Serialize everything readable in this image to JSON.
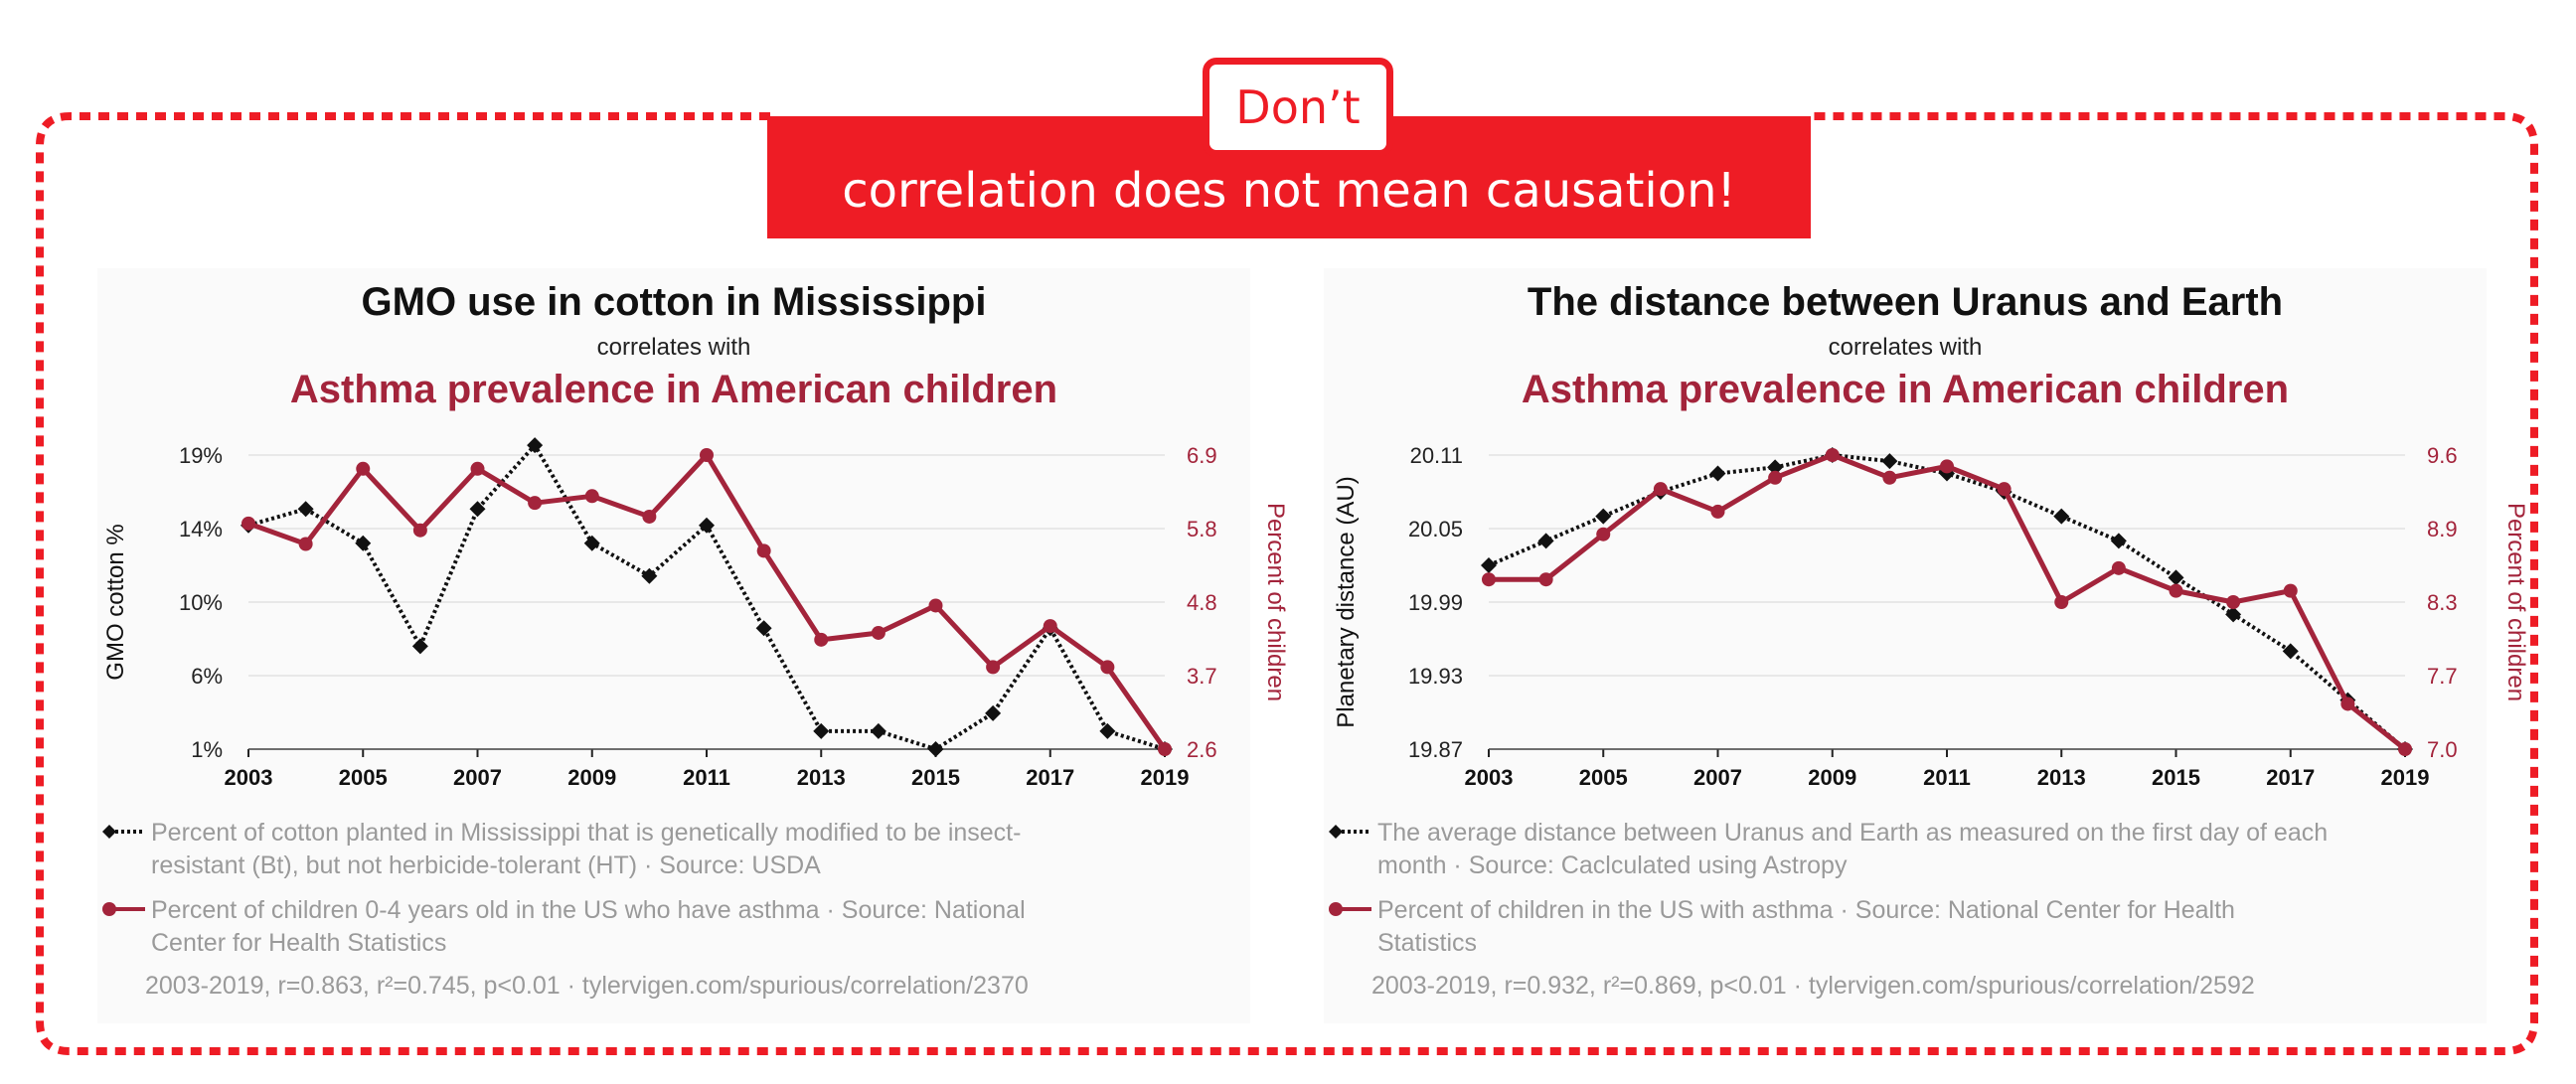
{
  "banner": {
    "dont_label": "Don’t",
    "message": "correlation does not mean causation!",
    "accent_color": "#ee1c25"
  },
  "colors": {
    "series_black": "#111111",
    "series_red": "#a3243b",
    "legend_text": "#9a9a9a"
  },
  "chart_data": [
    {
      "type": "line",
      "title": "GMO use in cotton in Mississippi",
      "subtitle": "correlates with",
      "title2": "Asthma prevalence in American children",
      "x": [
        2003,
        2004,
        2005,
        2006,
        2007,
        2008,
        2009,
        2010,
        2011,
        2012,
        2013,
        2014,
        2015,
        2016,
        2017,
        2018,
        2019
      ],
      "x_ticks": [
        "2003",
        "2005",
        "2007",
        "2009",
        "2011",
        "2013",
        "2015",
        "2017",
        "2019"
      ],
      "ylabel": "GMO cotton %",
      "ylabel_right": "Percent of children",
      "y_ticks_left": [
        "19%",
        "14%",
        "10%",
        "6%",
        "1%"
      ],
      "y_ticks_right": [
        "6.9",
        "5.8",
        "4.8",
        "3.7",
        "2.6"
      ],
      "y_left_range": [
        1,
        19
      ],
      "y_right_range": [
        2.6,
        6.9
      ],
      "grid": true,
      "series": [
        {
          "marker": "diamond",
          "axis": "left",
          "values": [
            14.7,
            15.7,
            13.6,
            7.3,
            15.7,
            19.6,
            13.6,
            11.6,
            14.7,
            8.4,
            2.1,
            2.1,
            1.0,
            3.2,
            8.4,
            2.1,
            1.0
          ]
        },
        {
          "marker": "circle",
          "axis": "right",
          "values": [
            5.9,
            5.6,
            6.7,
            5.8,
            6.7,
            6.2,
            6.3,
            6.0,
            6.9,
            5.5,
            4.2,
            4.3,
            4.7,
            3.8,
            4.4,
            3.8,
            2.6
          ]
        }
      ],
      "legend": [
        "Percent of cotton planted in Mississippi that is genetically modified to be insect-resistant (Bt), but not herbicide-tolerant (HT) · Source: USDA",
        "Percent of children 0-4 years old in the US who have asthma · Source: National Center for Health Statistics"
      ],
      "stats": "2003-2019, r=0.863, r²=0.745, p<0.01 · tylervigen.com/spurious/correlation/2370"
    },
    {
      "type": "line",
      "title": "The distance between Uranus and Earth",
      "subtitle": "correlates with",
      "title2": "Asthma prevalence in American children",
      "x": [
        2003,
        2004,
        2005,
        2006,
        2007,
        2008,
        2009,
        2010,
        2011,
        2012,
        2013,
        2014,
        2015,
        2016,
        2017,
        2018,
        2019
      ],
      "x_ticks": [
        "2003",
        "2005",
        "2007",
        "2009",
        "2011",
        "2013",
        "2015",
        "2017",
        "2019"
      ],
      "ylabel": "Planetary distance (AU)",
      "ylabel_right": "Percent of children",
      "y_ticks_left": [
        "20.11",
        "20.05",
        "19.99",
        "19.93",
        "19.87"
      ],
      "y_ticks_right": [
        "9.6",
        "8.9",
        "8.3",
        "7.7",
        "7.0"
      ],
      "y_left_range": [
        19.87,
        20.11
      ],
      "y_right_range": [
        7.0,
        9.6
      ],
      "grid": true,
      "series": [
        {
          "marker": "diamond",
          "axis": "left",
          "values": [
            20.02,
            20.04,
            20.06,
            20.08,
            20.095,
            20.1,
            20.11,
            20.105,
            20.095,
            20.08,
            20.06,
            20.04,
            20.01,
            19.98,
            19.95,
            19.91,
            19.87
          ]
        },
        {
          "marker": "circle",
          "axis": "right",
          "values": [
            8.5,
            8.5,
            8.9,
            9.3,
            9.1,
            9.4,
            9.6,
            9.4,
            9.5,
            9.3,
            8.3,
            8.6,
            8.4,
            8.3,
            8.4,
            7.4,
            7.0
          ]
        }
      ],
      "legend": [
        "The average distance between Uranus and Earth as measured on the first day of each month · Source: Caclculated using Astropy",
        "Percent of children in the US with asthma · Source: National Center for Health Statistics"
      ],
      "stats": "2003-2019, r=0.932, r²=0.869, p<0.01 · tylervigen.com/spurious/correlation/2592"
    }
  ]
}
